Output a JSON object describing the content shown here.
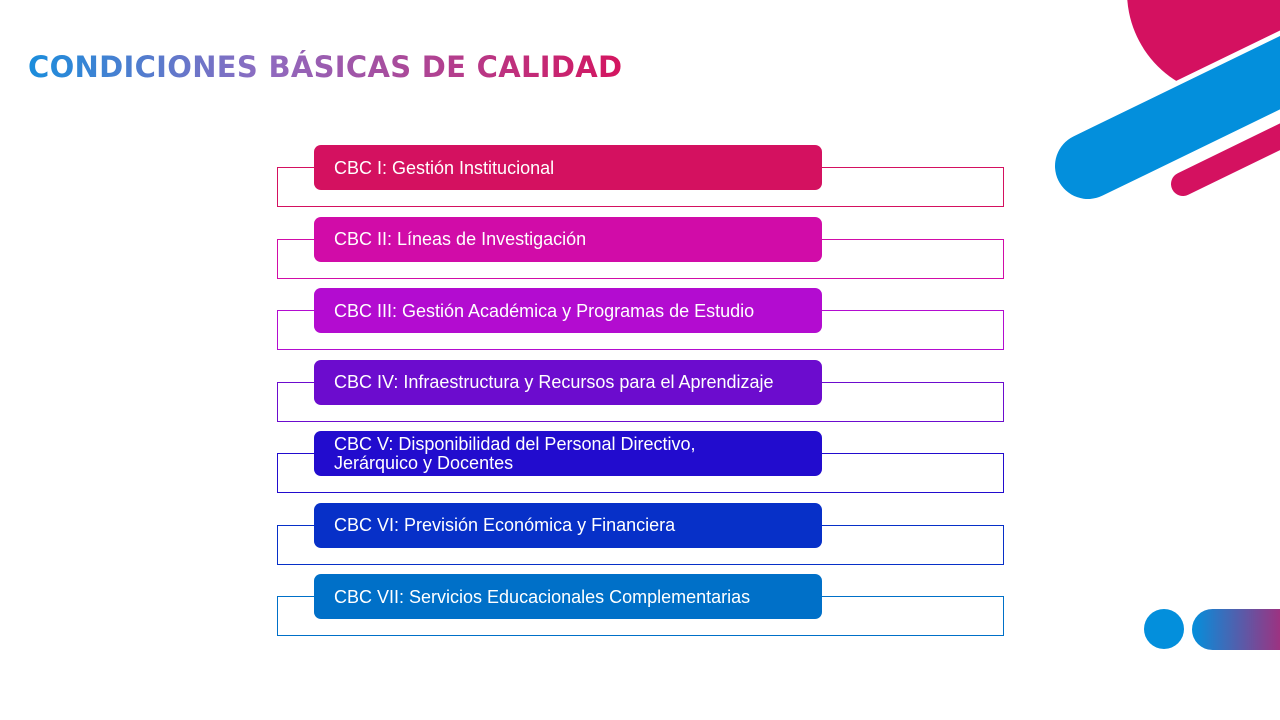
{
  "title": "CONDICIONES BÁSICAS DE CALIDAD",
  "items": [
    {
      "label": "CBC I: Gestión Institucional",
      "color": "#D41160"
    },
    {
      "label": "CBC II: Líneas de Investigación",
      "color": "#D10CA8"
    },
    {
      "label": "CBC III: Gestión Académica y Programas de Estudio",
      "color": "#B30CD0"
    },
    {
      "label": "CBC IV: Infraestructura y Recursos para el Aprendizaje",
      "color": "#6C0CCE"
    },
    {
      "label": "CBC V: Disponibilidad del Personal Directivo, Jerárquico y Docentes",
      "color": "#220CCE"
    },
    {
      "label": "CBC VI: Previsión Económica y Financiera",
      "color": "#0730C8"
    },
    {
      "label": "CBC VII: Servicios Educacionales Complementarias",
      "color": "#0070C8"
    }
  ],
  "colors": {
    "pink": "#D41160",
    "blue": "#038FDC"
  }
}
